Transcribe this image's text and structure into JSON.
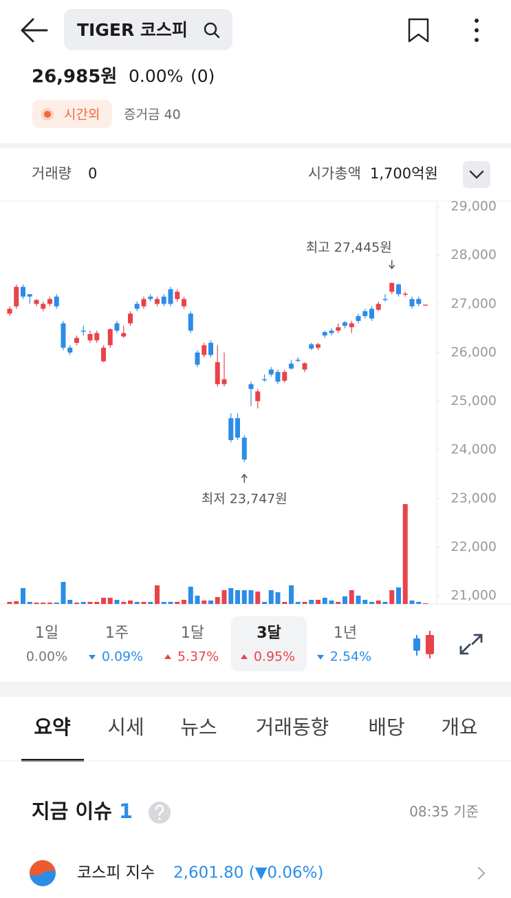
{
  "header": {
    "title": "TIGER 코스피"
  },
  "quote": {
    "price": "26,985원",
    "change_rate": "0.00%",
    "change": "(0)",
    "session": "시간외",
    "margin": "증거금 40"
  },
  "stats": [
    {
      "label": "거래량",
      "value": "0"
    },
    {
      "label": "시가총액",
      "value": "1,700억원"
    }
  ],
  "chart_data": {
    "type": "candlestick",
    "up_color": "#e8434a",
    "down_color": "#2b8de8",
    "open": [
      26800,
      26950,
      27350,
      27200,
      27000,
      26900,
      27000,
      27150,
      26600,
      26100,
      26200,
      26450,
      26250,
      26250,
      25820,
      26150,
      26600,
      26330,
      26600,
      27000,
      26950,
      27150,
      27000,
      27150,
      27300,
      27100,
      26950,
      26800,
      26000,
      25950,
      26200,
      25350,
      25350,
      24650,
      24650,
      24250,
      25350,
      25000,
      25450,
      25650,
      25600,
      25420,
      25770,
      25850,
      25650,
      26170,
      26100,
      26420,
      26450,
      26450,
      26620,
      26520,
      26750,
      26850,
      26900,
      26880,
      27100,
      27250,
      27400,
      27200,
      27100,
      27100,
      26985
    ],
    "high": [
      26950,
      27400,
      27400,
      27200,
      27100,
      27050,
      27150,
      27200,
      26650,
      26150,
      26350,
      26550,
      26450,
      26450,
      26150,
      26500,
      26650,
      26550,
      26850,
      27050,
      27150,
      27200,
      27150,
      27200,
      27350,
      27300,
      27150,
      26850,
      26050,
      26200,
      26250,
      26150,
      26000,
      24750,
      24750,
      24300,
      25400,
      25250,
      25550,
      25700,
      25650,
      25650,
      25850,
      25900,
      25800,
      26200,
      26200,
      26450,
      26500,
      26600,
      26650,
      26650,
      26800,
      26900,
      26950,
      27050,
      27200,
      27445,
      27420,
      27250,
      27150,
      27150,
      26985
    ],
    "low": [
      26750,
      26900,
      27100,
      27000,
      26950,
      26850,
      26950,
      26900,
      26050,
      25950,
      26150,
      26350,
      26200,
      26200,
      25800,
      26100,
      26400,
      26300,
      26550,
      26850,
      26900,
      27050,
      26950,
      26950,
      26950,
      27050,
      26900,
      26400,
      25700,
      25900,
      25900,
      25300,
      25300,
      24150,
      24200,
      23747,
      24900,
      24850,
      25400,
      25500,
      25350,
      25380,
      25650,
      25800,
      25600,
      26050,
      26050,
      26300,
      26350,
      26400,
      26500,
      26400,
      26600,
      26700,
      26650,
      26850,
      27050,
      27200,
      27150,
      27150,
      26900,
      26950,
      26985
    ],
    "close": [
      26900,
      27350,
      27150,
      27150,
      27080,
      27000,
      27100,
      26950,
      26100,
      26000,
      26300,
      26440,
      26380,
      26400,
      26100,
      26480,
      26450,
      26400,
      26800,
      26900,
      27100,
      27100,
      27100,
      27000,
      27000,
      27250,
      27100,
      26450,
      25750,
      26150,
      25950,
      25800,
      25450,
      24200,
      24250,
      23800,
      25250,
      25200,
      25440,
      25550,
      25400,
      25600,
      25670,
      25840,
      25780,
      26080,
      26170,
      26350,
      26400,
      26520,
      26550,
      26600,
      26650,
      26750,
      26700,
      27000,
      27090,
      27430,
      27200,
      27210,
      26950,
      27000,
      26985
    ],
    "volume": [
      3,
      4,
      23,
      3,
      2,
      2,
      2,
      2,
      32,
      6,
      2,
      3,
      3,
      3,
      9,
      9,
      6,
      3,
      5,
      3,
      3,
      3,
      27,
      3,
      3,
      3,
      6,
      25,
      12,
      5,
      5,
      10,
      20,
      23,
      20,
      20,
      20,
      18,
      3,
      20,
      17,
      3,
      27,
      3,
      3,
      6,
      6,
      9,
      5,
      3,
      11,
      20,
      12,
      6,
      3,
      5,
      3,
      20,
      24,
      145,
      5,
      3,
      1
    ],
    "ylim": [
      20830,
      29100
    ],
    "yticks": [
      {
        "value": 21000,
        "label": "21,000"
      },
      {
        "value": 22000,
        "label": "22,000"
      },
      {
        "value": 23000,
        "label": "23,000"
      },
      {
        "value": 24000,
        "label": "24,000"
      },
      {
        "value": 25000,
        "label": "25,000"
      },
      {
        "value": 26000,
        "label": "26,000"
      },
      {
        "value": 27000,
        "label": "27,000"
      },
      {
        "value": 28000,
        "label": "28,000"
      },
      {
        "value": 29000,
        "label": "29,000"
      }
    ],
    "annotations": {
      "high": "최고 27,445원",
      "low": "최저 23,747원"
    }
  },
  "periods": [
    {
      "label": "1일",
      "change": "0.00%",
      "direction": "flat"
    },
    {
      "label": "1주",
      "change": "0.09%",
      "direction": "down"
    },
    {
      "label": "1달",
      "change": "5.37%",
      "direction": "up"
    },
    {
      "label": "3달",
      "change": "0.95%",
      "direction": "up",
      "selected": true
    },
    {
      "label": "1년",
      "change": "2.54%",
      "direction": "down"
    }
  ],
  "tabs": [
    "요약",
    "시세",
    "뉴스",
    "거래동향",
    "배당",
    "개요"
  ],
  "active_tab": 0,
  "issue": {
    "title": "지금 이슈",
    "count": 1,
    "time": "08:35 기준",
    "items": [
      {
        "name": "코스피 지수",
        "value": "2,601.80 (▼0.06%)"
      }
    ]
  }
}
